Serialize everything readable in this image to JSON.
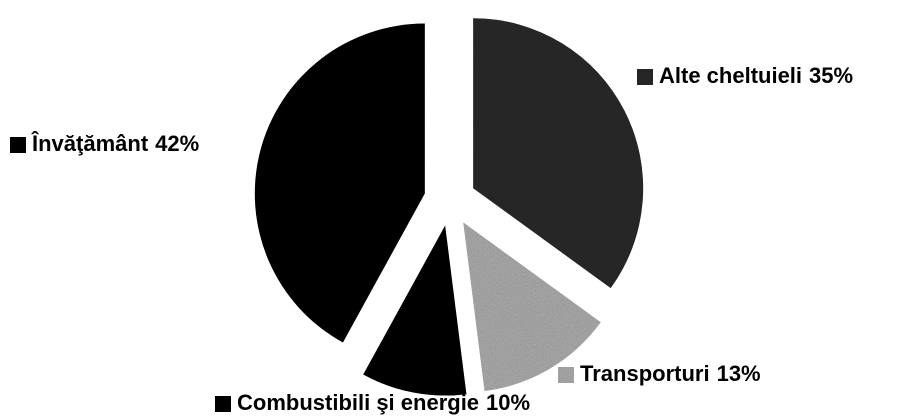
{
  "chart_data": {
    "type": "pie",
    "categories": [
      "Alte cheltuieli",
      "Transporturi",
      "Combustibili şi energie",
      "Învăţământ"
    ],
    "values": [
      35,
      13,
      10,
      42
    ],
    "value_labels": [
      "35%",
      "13%",
      "10%",
      "42%"
    ],
    "colors": [
      "#2e2e2e",
      "#b4b4b4",
      "#0d0d0d",
      "#050505"
    ]
  }
}
